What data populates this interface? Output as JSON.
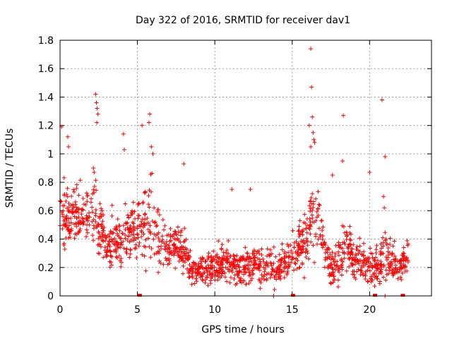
{
  "chart_data": {
    "type": "scatter",
    "title": "Day 322 of 2016, SRMTID for receiver dav1",
    "xlabel": "GPS time / hours",
    "ylabel": "SRMTID / TECUs",
    "xlim": [
      0,
      24
    ],
    "ylim": [
      0,
      1.8
    ],
    "xticks": [
      0,
      5,
      10,
      15,
      20
    ],
    "xtick_labels": [
      "0",
      "5",
      "10",
      "15",
      "20"
    ],
    "yticks": [
      0,
      0.2,
      0.4,
      0.6,
      0.8,
      1.0,
      1.2,
      1.4,
      1.6,
      1.8
    ],
    "ytick_labels": [
      "0",
      "0.2",
      "0.4",
      "0.6",
      "0.8",
      "1",
      "1.2",
      "1.4",
      "1.6",
      "1.8"
    ],
    "grid": true,
    "marker": "+",
    "color": "#ff0000",
    "envelope": {
      "hours": [
        0,
        0.5,
        1,
        1.5,
        2,
        2.3,
        2.5,
        3,
        3.5,
        4,
        4.5,
        5,
        5.5,
        5.9,
        6.3,
        7,
        7.5,
        8,
        8.5,
        9,
        9.5,
        10,
        10.5,
        11,
        11.5,
        12,
        12.5,
        13,
        13.5,
        14,
        14.5,
        15,
        15.5,
        16,
        16.3,
        16.7,
        17,
        17.5,
        18,
        18.5,
        19,
        19.5,
        20,
        20.5,
        21,
        21.5,
        22,
        22.5
      ],
      "center": [
        0.55,
        0.6,
        0.55,
        0.6,
        0.55,
        0.7,
        0.45,
        0.35,
        0.4,
        0.4,
        0.45,
        0.5,
        0.45,
        0.6,
        0.4,
        0.35,
        0.35,
        0.3,
        0.2,
        0.18,
        0.2,
        0.22,
        0.25,
        0.22,
        0.2,
        0.2,
        0.22,
        0.2,
        0.22,
        0.2,
        0.22,
        0.3,
        0.35,
        0.45,
        0.6,
        0.5,
        0.4,
        0.2,
        0.25,
        0.35,
        0.25,
        0.25,
        0.22,
        0.18,
        0.3,
        0.25,
        0.2,
        0.3
      ],
      "spread": [
        0.2,
        0.25,
        0.2,
        0.2,
        0.2,
        0.3,
        0.25,
        0.2,
        0.2,
        0.25,
        0.25,
        0.25,
        0.3,
        0.35,
        0.25,
        0.15,
        0.15,
        0.2,
        0.12,
        0.1,
        0.12,
        0.15,
        0.15,
        0.12,
        0.12,
        0.15,
        0.15,
        0.12,
        0.15,
        0.15,
        0.15,
        0.2,
        0.2,
        0.25,
        0.35,
        0.3,
        0.2,
        0.15,
        0.2,
        0.2,
        0.15,
        0.15,
        0.15,
        0.15,
        0.2,
        0.15,
        0.1,
        0.15
      ],
      "point_count": 1500
    },
    "peaks": [
      {
        "x": 0.1,
        "y": 1.19
      },
      {
        "x": 0.5,
        "y": 1.12
      },
      {
        "x": 0.55,
        "y": 1.05
      },
      {
        "x": 2.3,
        "y": 1.42
      },
      {
        "x": 2.35,
        "y": 1.36
      },
      {
        "x": 2.4,
        "y": 1.32
      },
      {
        "x": 2.45,
        "y": 1.28
      },
      {
        "x": 2.38,
        "y": 1.22
      },
      {
        "x": 4.1,
        "y": 1.14
      },
      {
        "x": 4.15,
        "y": 1.03
      },
      {
        "x": 5.3,
        "y": 1.2
      },
      {
        "x": 5.8,
        "y": 1.28
      },
      {
        "x": 5.75,
        "y": 1.22
      },
      {
        "x": 5.9,
        "y": 1.05
      },
      {
        "x": 6.0,
        "y": 1.0
      },
      {
        "x": 8.0,
        "y": 0.93
      },
      {
        "x": 11.1,
        "y": 0.75
      },
      {
        "x": 12.3,
        "y": 0.75
      },
      {
        "x": 16.2,
        "y": 1.74
      },
      {
        "x": 16.25,
        "y": 1.47
      },
      {
        "x": 16.3,
        "y": 1.26
      },
      {
        "x": 16.1,
        "y": 1.2
      },
      {
        "x": 16.35,
        "y": 1.15
      },
      {
        "x": 16.4,
        "y": 1.1
      },
      {
        "x": 16.45,
        "y": 1.08
      },
      {
        "x": 16.2,
        "y": 1.05
      },
      {
        "x": 17.6,
        "y": 0.85
      },
      {
        "x": 18.3,
        "y": 1.27
      },
      {
        "x": 18.25,
        "y": 0.95
      },
      {
        "x": 20.0,
        "y": 0.87
      },
      {
        "x": 20.8,
        "y": 1.38
      },
      {
        "x": 21.0,
        "y": 0.98
      },
      {
        "x": 20.9,
        "y": 0.7
      },
      {
        "x": 20.95,
        "y": 0.62
      },
      {
        "x": 21.0,
        "y": 0.0
      },
      {
        "x": 13.8,
        "y": 0.0
      }
    ],
    "markers_at_zero": [
      5.15,
      15.05,
      20.35,
      22.15
    ]
  }
}
